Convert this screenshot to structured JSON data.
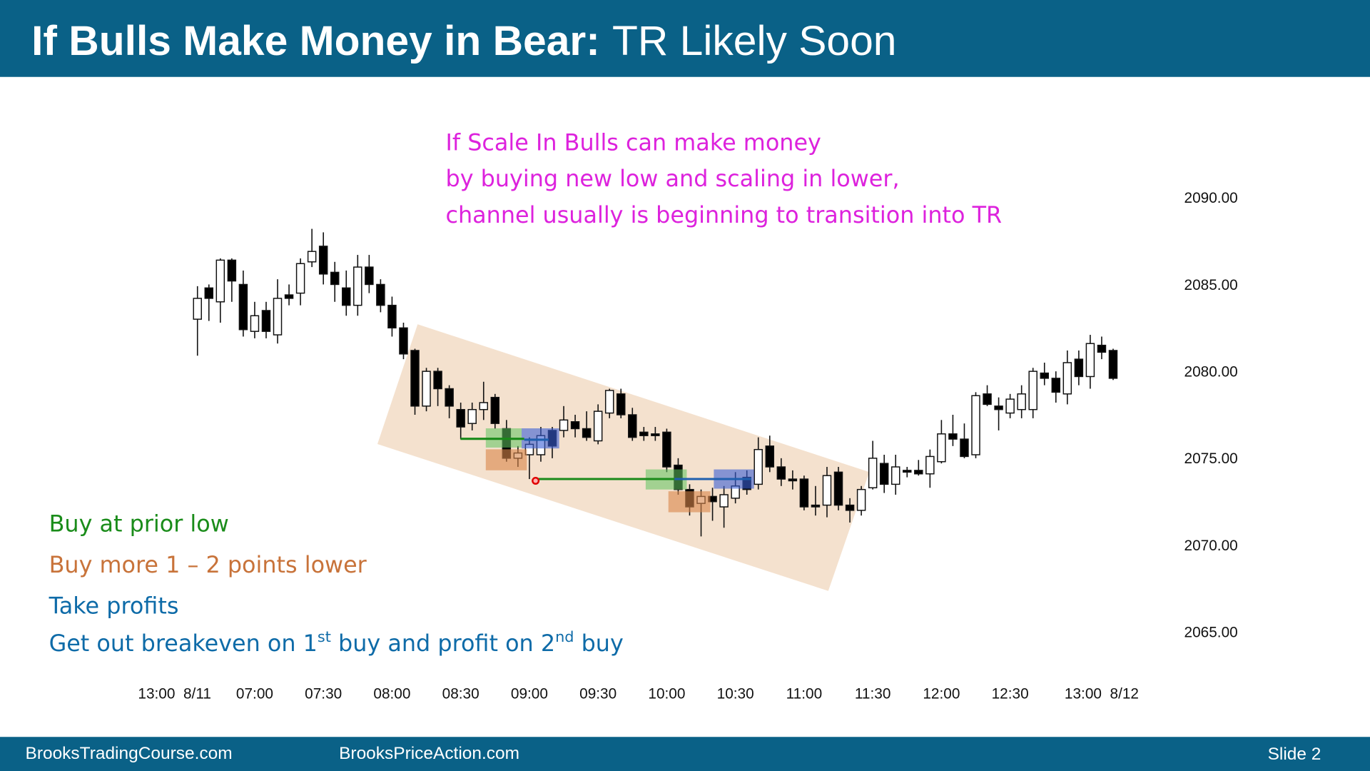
{
  "chart_data": {
    "type": "candlestick",
    "title": [
      "If Bulls Make Money in Bear:",
      "TR Likely Soon"
    ],
    "annotation": [
      "If Scale In Bulls can make money",
      "by buying new low and scaling in lower,",
      "channel usually is beginning to transition into TR"
    ],
    "notes": [
      [
        "Buy at prior low"
      ],
      [
        "Buy more 1 – 2 points lower"
      ],
      [
        "Take profits"
      ],
      [
        "Get out breakeven on 1",
        "st",
        " buy and profit on 2",
        "nd",
        " buy"
      ]
    ],
    "up_color": "#ffffff",
    "down_color": "#000000",
    "open": [
      2083.0,
      2084.8,
      2084.0,
      2086.4,
      2085.0,
      2082.3,
      2083.5,
      2082.1,
      2084.4,
      2084.5,
      2086.3,
      2087.2,
      2085.7,
      2084.8,
      2083.8,
      2086.0,
      2085.0,
      2083.8,
      2082.5,
      2081.2,
      2078.0,
      2080.0,
      2079.0,
      2077.8,
      2077.0,
      2077.8,
      2078.5,
      2076.7,
      2075.0,
      2075.2,
      2075.2,
      2076.6,
      2076.6,
      2077.1,
      2076.7,
      2076.0,
      2077.6,
      2078.7,
      2077.5,
      2076.5,
      2076.4,
      2076.5,
      2074.6,
      2073.2,
      2072.4,
      2072.8,
      2072.2,
      2072.7,
      2073.9,
      2073.5,
      2075.7,
      2074.5,
      2073.8,
      2073.8,
      2072.3,
      2072.3,
      2074.2,
      2072.3,
      2072.0,
      2073.3,
      2074.7,
      2073.5,
      2074.3,
      2074.3,
      2074.1,
      2074.8,
      2076.4,
      2076.1,
      2075.2,
      2078.7,
      2078.0,
      2077.6,
      2077.8,
      2077.8,
      2079.9,
      2079.6,
      2078.7,
      2080.7,
      2079.7,
      2081.5,
      2081.2
    ],
    "high": [
      2084.9,
      2085.0,
      2086.5,
      2086.5,
      2085.8,
      2084.0,
      2084.0,
      2085.3,
      2085.0,
      2086.5,
      2088.2,
      2088.0,
      2086.3,
      2085.8,
      2086.7,
      2086.7,
      2085.3,
      2084.3,
      2082.8,
      2081.3,
      2080.2,
      2080.2,
      2079.2,
      2078.2,
      2078.2,
      2079.4,
      2078.7,
      2077.2,
      2075.7,
      2076.2,
      2076.8,
      2076.8,
      2078.0,
      2077.5,
      2077.7,
      2078.1,
      2079.0,
      2079.0,
      2077.9,
      2076.8,
      2076.8,
      2076.7,
      2075.0,
      2073.5,
      2073.2,
      2073.3,
      2073.4,
      2074.2,
      2074.3,
      2076.2,
      2076.3,
      2075.0,
      2074.3,
      2074.0,
      2073.4,
      2074.5,
      2074.5,
      2072.7,
      2073.4,
      2076.0,
      2075.2,
      2075.2,
      2074.5,
      2074.9,
      2075.5,
      2077.2,
      2077.5,
      2077.0,
      2078.8,
      2079.2,
      2078.5,
      2078.7,
      2079.2,
      2080.2,
      2080.5,
      2080.0,
      2081.2,
      2081.2,
      2082.1,
      2082.0,
      2081.3
    ],
    "low": [
      2080.9,
      2082.9,
      2082.8,
      2084.0,
      2082.0,
      2081.9,
      2081.9,
      2081.6,
      2083.8,
      2083.8,
      2086.0,
      2085.0,
      2084.0,
      2083.2,
      2083.2,
      2084.5,
      2083.4,
      2082.0,
      2080.7,
      2077.5,
      2077.7,
      2078.0,
      2077.3,
      2076.1,
      2076.6,
      2077.2,
      2076.7,
      2074.8,
      2074.5,
      2073.8,
      2074.8,
      2075.0,
      2076.2,
      2076.2,
      2076.0,
      2075.8,
      2077.3,
      2077.3,
      2076.0,
      2076.0,
      2076.0,
      2074.2,
      2072.9,
      2071.7,
      2070.5,
      2071.4,
      2071.0,
      2072.4,
      2072.9,
      2073.2,
      2074.2,
      2073.4,
      2073.2,
      2072.0,
      2071.7,
      2071.6,
      2072.0,
      2071.3,
      2071.7,
      2073.2,
      2073.0,
      2072.9,
      2073.9,
      2074.0,
      2073.3,
      2074.7,
      2075.7,
      2075.0,
      2075.0,
      2078.0,
      2076.6,
      2077.3,
      2077.3,
      2077.3,
      2079.2,
      2078.2,
      2078.1,
      2079.2,
      2079.0,
      2080.7,
      2079.5
    ],
    "close": [
      2084.2,
      2084.2,
      2086.4,
      2085.2,
      2082.4,
      2083.2,
      2082.3,
      2084.2,
      2084.2,
      2086.2,
      2086.9,
      2085.6,
      2085.0,
      2083.8,
      2086.0,
      2085.0,
      2083.8,
      2082.5,
      2081.0,
      2078.0,
      2080.0,
      2079.0,
      2078.0,
      2076.8,
      2077.8,
      2078.2,
      2077.0,
      2075.0,
      2075.3,
      2075.8,
      2076.3,
      2075.7,
      2077.2,
      2076.7,
      2076.2,
      2077.7,
      2078.9,
      2077.5,
      2076.2,
      2076.3,
      2076.3,
      2074.5,
      2073.2,
      2072.2,
      2072.8,
      2072.5,
      2072.9,
      2073.4,
      2073.2,
      2075.5,
      2074.5,
      2073.8,
      2073.7,
      2072.2,
      2072.2,
      2074.0,
      2072.3,
      2072.0,
      2073.2,
      2075.0,
      2073.5,
      2074.5,
      2074.2,
      2074.1,
      2075.1,
      2076.4,
      2076.1,
      2075.1,
      2078.6,
      2078.1,
      2077.8,
      2078.4,
      2078.7,
      2080.0,
      2079.6,
      2078.8,
      2080.5,
      2079.7,
      2081.6,
      2081.1,
      2079.6
    ],
    "xlim": [
      -6,
      84
    ],
    "xticks": [
      {
        "value": -2,
        "label": "13:00  8/11"
      },
      {
        "value": 5,
        "label": "07:00"
      },
      {
        "value": 11,
        "label": "07:30"
      },
      {
        "value": 17,
        "label": "08:00"
      },
      {
        "value": 23,
        "label": "08:30"
      },
      {
        "value": 29,
        "label": "09:00"
      },
      {
        "value": 35,
        "label": "09:30"
      },
      {
        "value": 41,
        "label": "10:00"
      },
      {
        "value": 47,
        "label": "10:30"
      },
      {
        "value": 53,
        "label": "11:00"
      },
      {
        "value": 59,
        "label": "11:30"
      },
      {
        "value": 65,
        "label": "12:00"
      },
      {
        "value": 71,
        "label": "12:30"
      },
      {
        "value": 79,
        "label": "13:00  8/12"
      }
    ],
    "ylim": [
      2062,
      2094
    ],
    "yticks": [
      {
        "value": 2065,
        "label": "2065.00"
      },
      {
        "value": 2070,
        "label": "2070.00"
      },
      {
        "value": 2075,
        "label": "2075.00"
      },
      {
        "value": 2080,
        "label": "2080.00"
      },
      {
        "value": 2085,
        "label": "2085.00"
      },
      {
        "value": 2090,
        "label": "2090.00"
      }
    ]
  },
  "footer": {
    "left": "BrooksTradingCourse.com",
    "center": "BrooksPriceAction.com",
    "slide": "Slide 2"
  }
}
